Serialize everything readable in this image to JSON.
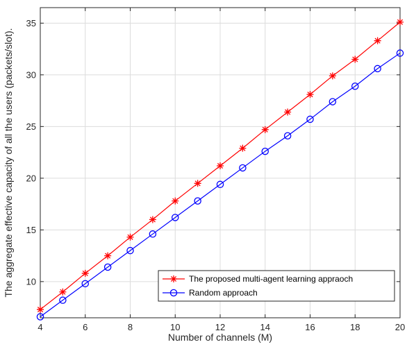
{
  "chart_data": {
    "type": "line",
    "title": "",
    "xlabel": "Number of channels (M)",
    "ylabel": "The aggregate effective capacity of all the users (packets/slot).",
    "xlim": [
      4,
      20
    ],
    "ylim": [
      6.5,
      36.5
    ],
    "xticks": [
      4,
      6,
      8,
      10,
      12,
      14,
      16,
      18,
      20
    ],
    "yticks": [
      10,
      15,
      20,
      25,
      30,
      35
    ],
    "grid": true,
    "legend": "bottom-right",
    "x": [
      4,
      5,
      6,
      7,
      8,
      9,
      10,
      11,
      12,
      13,
      14,
      15,
      16,
      17,
      18,
      19,
      20
    ],
    "series": [
      {
        "name": "The proposed multi-agent learning appraoch",
        "color": "#ff0000",
        "marker": "asterisk",
        "values": [
          7.3,
          9.0,
          10.8,
          12.5,
          14.3,
          16.0,
          17.8,
          19.5,
          21.2,
          22.9,
          24.7,
          26.4,
          28.1,
          29.9,
          31.5,
          33.3,
          35.1
        ]
      },
      {
        "name": "Random approach",
        "color": "#0000ff",
        "marker": "circle",
        "values": [
          6.6,
          8.2,
          9.8,
          11.4,
          13.0,
          14.6,
          16.2,
          17.8,
          19.4,
          21.0,
          22.6,
          24.1,
          25.7,
          27.4,
          28.9,
          30.6,
          32.1
        ]
      }
    ]
  }
}
